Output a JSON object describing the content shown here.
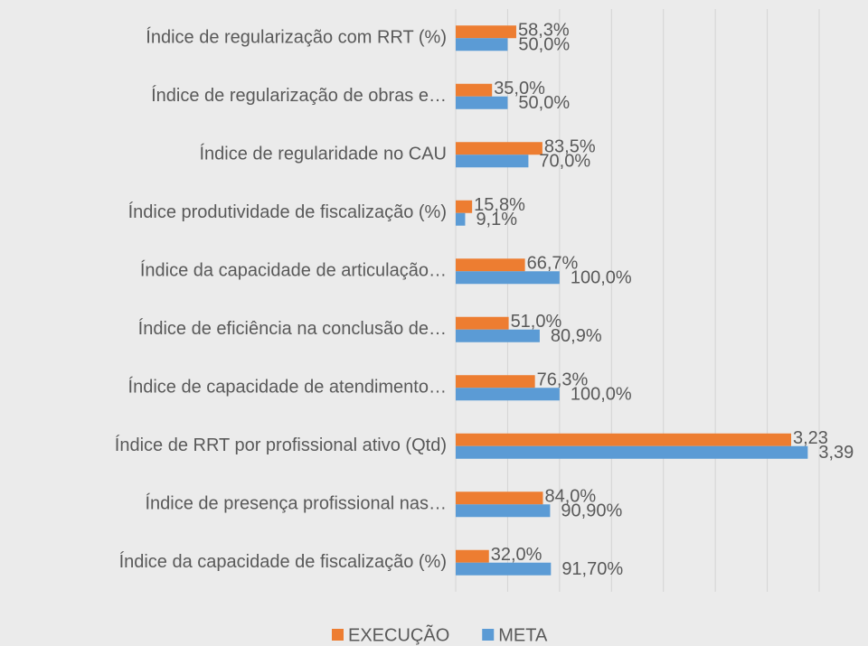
{
  "chart_data": {
    "type": "hbar",
    "categories": [
      "Índice de regularização com RRT (%)",
      "Índice de regularização de obras e…",
      "Índice de regularidade no CAU",
      "Índice produtividade de fiscalização (%)",
      "Índice da capacidade de articulação…",
      "Índice de eficiência na conclusão de…",
      "Índice de capacidade de atendimento…",
      "Índice de RRT por profissional ativo (Qtd)",
      "Índice de presença profissional nas…",
      "Índice da capacidade de fiscalização (%)"
    ],
    "series": [
      {
        "name": "EXECUÇÃO",
        "color": "#ed7d31",
        "values": [
          0.583,
          0.35,
          0.835,
          0.158,
          0.667,
          0.51,
          0.763,
          3.23,
          0.84,
          0.32
        ],
        "value_labels": [
          "58,3%",
          "35,0%",
          "83,5%",
          "15,8%",
          "66,7%",
          "51,0%",
          "76,3%",
          "3,23",
          "84,0%",
          "32,0%"
        ]
      },
      {
        "name": "META",
        "color": "#5b9bd5",
        "values": [
          0.5,
          0.5,
          0.7,
          0.091,
          1.0,
          0.809,
          1.0,
          3.39,
          0.909,
          0.917
        ],
        "value_labels": [
          "50,0%",
          "50,0%",
          "70,0%",
          "9,1%",
          "100,0%",
          "80,9%",
          "100,0%",
          "3,39",
          "90,90%",
          "91,70%"
        ]
      }
    ],
    "xlim": [
      0,
      3.5
    ],
    "xticks": [
      0,
      0.5,
      1,
      1.5,
      2,
      2.5,
      3,
      3.5
    ],
    "grid": true,
    "legend": "bottom"
  }
}
